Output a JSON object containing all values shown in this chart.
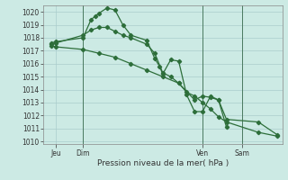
{
  "background_color": "#cceae4",
  "grid_color": "#aacccc",
  "line_color": "#2d6e3a",
  "title": "Pression niveau de la mer( hPa )",
  "ylim": [
    1009.8,
    1020.5
  ],
  "yticks": [
    1010,
    1011,
    1012,
    1013,
    1014,
    1015,
    1016,
    1017,
    1018,
    1019,
    1020
  ],
  "xlim": [
    -0.5,
    14.5
  ],
  "vlines": [
    2.0,
    9.5,
    12.0
  ],
  "xtick_positions": [
    0.3,
    2.0,
    9.5,
    12.0
  ],
  "xtick_labels": [
    "Jeu",
    "Dim",
    "Ven",
    "Sam"
  ],
  "series1_x": [
    0.0,
    0.3,
    2.0,
    2.5,
    2.8,
    3.0,
    3.5,
    4.0,
    4.5,
    5.0,
    6.0,
    6.5,
    6.8,
    7.0,
    7.5,
    8.0,
    8.5,
    9.0,
    9.5,
    10.0,
    10.5,
    11.0
  ],
  "series1_y": [
    1017.6,
    1017.7,
    1018.0,
    1019.4,
    1019.7,
    1019.9,
    1020.3,
    1020.15,
    1019.0,
    1018.2,
    1017.8,
    1016.4,
    1015.8,
    1015.2,
    1016.3,
    1016.2,
    1013.6,
    1012.3,
    1012.3,
    1013.5,
    1013.2,
    1011.1
  ],
  "series2_x": [
    0.0,
    0.3,
    2.0,
    2.5,
    3.0,
    3.5,
    4.0,
    4.5,
    5.0,
    6.0,
    6.5,
    7.0,
    7.5,
    8.0,
    9.0,
    9.5,
    10.0,
    10.5,
    11.0,
    13.0,
    14.2
  ],
  "series2_y": [
    1017.5,
    1017.6,
    1018.2,
    1018.6,
    1018.8,
    1018.8,
    1018.5,
    1018.2,
    1018.0,
    1017.5,
    1016.8,
    1015.3,
    1015.0,
    1014.5,
    1013.2,
    1013.5,
    1013.4,
    1013.2,
    1011.7,
    1011.5,
    1010.5
  ],
  "series3_x": [
    0.0,
    0.3,
    2.0,
    3.0,
    4.0,
    5.0,
    6.0,
    7.0,
    8.0,
    8.5,
    9.0,
    9.5,
    10.0,
    10.5,
    11.0,
    13.0,
    14.2
  ],
  "series3_y": [
    1017.4,
    1017.3,
    1017.1,
    1016.8,
    1016.5,
    1016.0,
    1015.5,
    1015.0,
    1014.5,
    1013.8,
    1013.5,
    1013.0,
    1012.5,
    1011.9,
    1011.5,
    1010.7,
    1010.4
  ]
}
